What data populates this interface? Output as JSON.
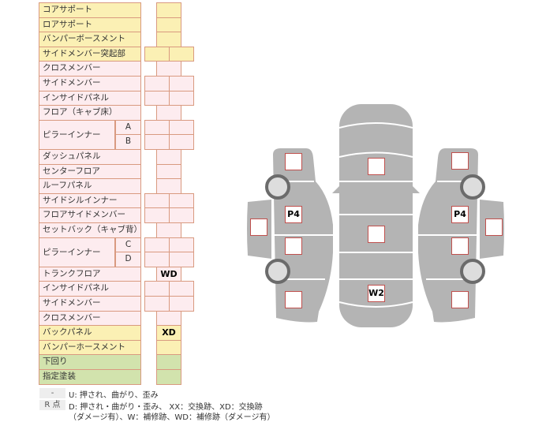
{
  "table": {
    "rows": [
      {
        "label": "コアサポート",
        "color": "y",
        "cells": 1
      },
      {
        "label": "ロアサポート",
        "color": "y",
        "cells": 1
      },
      {
        "label": "バンパーボースメント",
        "color": "y",
        "cells": 1
      },
      {
        "label": "サイドメンバー突起部",
        "color": "y",
        "cells": 2
      },
      {
        "label": "クロスメンバー",
        "color": "p",
        "cells": 1
      },
      {
        "label": "サイドメンバー",
        "color": "p",
        "cells": 2
      },
      {
        "label": "インサイドパネル",
        "color": "p",
        "cells": 2
      },
      {
        "label": "フロア（キャブ床）",
        "color": "p",
        "cells": 1
      },
      {
        "label": "ピラーインナー",
        "sub": "A",
        "span": 2,
        "color": "p",
        "cells": 2
      },
      {
        "sub": "B",
        "color": "p",
        "cells": 2
      },
      {
        "label": "ダッシュパネル",
        "color": "p",
        "cells": 1
      },
      {
        "label": "センターフロア",
        "color": "p",
        "cells": 1
      },
      {
        "label": "ルーフパネル",
        "color": "p",
        "cells": 1
      },
      {
        "label": "サイドシルインナー",
        "color": "p",
        "cells": 2
      },
      {
        "label": "フロアサイドメンバー",
        "color": "p",
        "cells": 2
      },
      {
        "label": "セットバック（キャブ背）",
        "color": "p",
        "cells": 1
      },
      {
        "label": "ピラーインナー",
        "sub": "C",
        "span": 2,
        "color": "p",
        "cells": 2
      },
      {
        "sub": "D",
        "color": "p",
        "cells": 2
      },
      {
        "label": "トランクフロア",
        "color": "p",
        "cells": 1,
        "mark": "WD"
      },
      {
        "label": "インサイドパネル",
        "color": "p",
        "cells": 2
      },
      {
        "label": "サイドメンバー",
        "color": "p",
        "cells": 2
      },
      {
        "label": "クロスメンバー",
        "color": "p",
        "cells": 1
      },
      {
        "label": "バックパネル",
        "color": "y",
        "cells": 1,
        "mark": "XD"
      },
      {
        "label": "バンパーホースメント",
        "color": "y",
        "cells": 1
      },
      {
        "label": "下回り",
        "color": "g",
        "cells": 1
      },
      {
        "label": "指定塗装",
        "color": "g",
        "cells": 1
      }
    ]
  },
  "legend": {
    "dash_key": "-",
    "dash_text": "U: 押され、曲がり、歪み",
    "r_key": "R 点",
    "r_text_1": "D: 押され・曲がり・歪み、 XX：交換跡、XD：交換跡",
    "r_text_2": "（ダメージ有）、W：補修跡、WD：補修跡（ダメージ有）"
  },
  "diagram": {
    "body_color": "#b4b4b4",
    "box_border": "#c0504d",
    "marks": {
      "left_p4": "P4",
      "right_p4": "P4",
      "center_rear": "W2"
    }
  }
}
